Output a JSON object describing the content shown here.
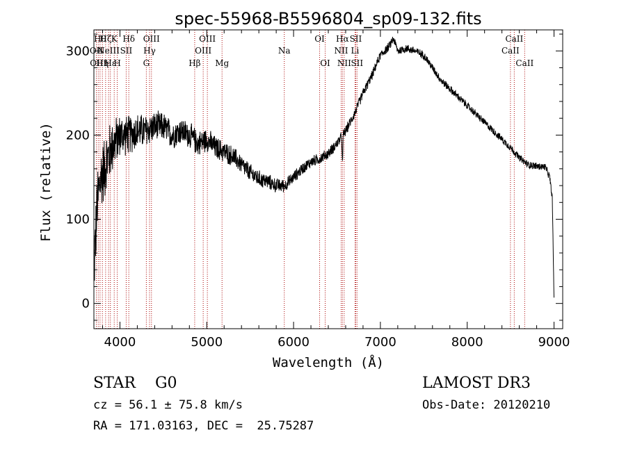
{
  "chart_data": {
    "type": "line",
    "title": "spec-55968-B5596804_sp09-132.fits",
    "xlabel": "Wavelength (Å)",
    "ylabel": "Flux (relative)",
    "xlim": [
      3700,
      9100
    ],
    "ylim": [
      -30,
      325
    ],
    "x_ticks": [
      4000,
      5000,
      6000,
      7000,
      8000,
      9000
    ],
    "x_tick_labels": [
      "4000",
      "5000",
      "6000",
      "7000",
      "8000",
      "9000"
    ],
    "y_ticks": [
      0,
      100,
      200,
      300
    ],
    "y_tick_labels": [
      "0",
      "100",
      "200",
      "300"
    ],
    "spectrum_trend": {
      "wavelength": [
        3700,
        3740,
        3780,
        3820,
        3900,
        4000,
        4100,
        4200,
        4300,
        4400,
        4500,
        4600,
        4700,
        4800,
        4900,
        5000,
        5100,
        5200,
        5300,
        5400,
        5500,
        5600,
        5700,
        5800,
        5900,
        6000,
        6100,
        6200,
        6300,
        6400,
        6500,
        6600,
        6700,
        6800,
        6900,
        7000,
        7100,
        7150,
        7200,
        7300,
        7400,
        7500,
        7600,
        7700,
        7800,
        7900,
        8000,
        8100,
        8200,
        8300,
        8400,
        8500,
        8600,
        8700,
        8800,
        8900,
        8950,
        8980,
        9000
      ],
      "flux": [
        40,
        120,
        150,
        160,
        185,
        200,
        200,
        205,
        205,
        210,
        210,
        200,
        205,
        200,
        190,
        195,
        185,
        180,
        175,
        165,
        155,
        148,
        145,
        140,
        140,
        150,
        160,
        168,
        172,
        178,
        190,
        205,
        225,
        250,
        270,
        295,
        305,
        315,
        300,
        303,
        300,
        295,
        280,
        265,
        255,
        245,
        235,
        225,
        215,
        205,
        195,
        185,
        173,
        165,
        163,
        162,
        150,
        125,
        5
      ]
    },
    "noise_amplitude": {
      "wavelength": [
        3700,
        3850,
        4000,
        4400,
        5000,
        5500,
        6000,
        6600,
        7000,
        8000,
        9000
      ],
      "amplitude": [
        45,
        42,
        28,
        20,
        16,
        12,
        8,
        7,
        6,
        5,
        5
      ]
    },
    "absorption_dips": [
      {
        "wavelength": 6563,
        "depth": 35
      }
    ],
    "spectral_lines": [
      {
        "wavelength": 3728,
        "label": "OII",
        "row": 1
      },
      {
        "wavelength": 3750,
        "label": "OIII",
        "row": 2
      },
      {
        "wavelength": 3771,
        "label": "Hθ",
        "row": 0
      },
      {
        "wavelength": 3798,
        "label": "Hη",
        "row": 2
      },
      {
        "wavelength": 3835,
        "label": "Hζ",
        "row": 0
      },
      {
        "wavelength": 3869,
        "label": "NeIII",
        "row": 1
      },
      {
        "wavelength": 3890,
        "label": "Hε",
        "row": 2
      },
      {
        "wavelength": 3934,
        "label": "K",
        "row": 0
      },
      {
        "wavelength": 3969,
        "label": "H",
        "row": 2
      },
      {
        "wavelength": 4072,
        "label": "SII",
        "row": 1
      },
      {
        "wavelength": 4102,
        "label": "Hδ",
        "row": 0
      },
      {
        "wavelength": 4304,
        "label": "G",
        "row": 2
      },
      {
        "wavelength": 4341,
        "label": "Hγ",
        "row": 1
      },
      {
        "wavelength": 4363,
        "label": "OIII",
        "row": 0
      },
      {
        "wavelength": 4861,
        "label": "Hβ",
        "row": 2
      },
      {
        "wavelength": 4959,
        "label": "OIII",
        "row": 1
      },
      {
        "wavelength": 5007,
        "label": "OIII",
        "row": 0
      },
      {
        "wavelength": 5176,
        "label": "Mg",
        "row": 2
      },
      {
        "wavelength": 5893,
        "label": "Na",
        "row": 1
      },
      {
        "wavelength": 6300,
        "label": "OI",
        "row": 0
      },
      {
        "wavelength": 6364,
        "label": "OI",
        "row": 2
      },
      {
        "wavelength": 6548,
        "label": "NII",
        "row": 1
      },
      {
        "wavelength": 6563,
        "label": "Hα",
        "row": 0
      },
      {
        "wavelength": 6583,
        "label": "NII",
        "row": 2
      },
      {
        "wavelength": 6708,
        "label": "Li",
        "row": 1
      },
      {
        "wavelength": 6716,
        "label": "SII",
        "row": 0
      },
      {
        "wavelength": 6731,
        "label": "SII",
        "row": 2
      },
      {
        "wavelength": 8498,
        "label": "CaII",
        "row": 1
      },
      {
        "wavelength": 8542,
        "label": "CaII",
        "row": 0
      },
      {
        "wavelength": 8662,
        "label": "CaII",
        "row": 2
      }
    ],
    "line_color": "#000000",
    "marker_color": "#aa0000"
  },
  "info": {
    "object_class": "STAR",
    "subclass": "G0",
    "survey": "LAMOST DR3",
    "cz_text": "cz = 56.1 ± 75.8 km/s",
    "obs_date_text": "Obs-Date: 20120210",
    "radec_text": "RA = 171.03163, DEC =  25.75287"
  }
}
